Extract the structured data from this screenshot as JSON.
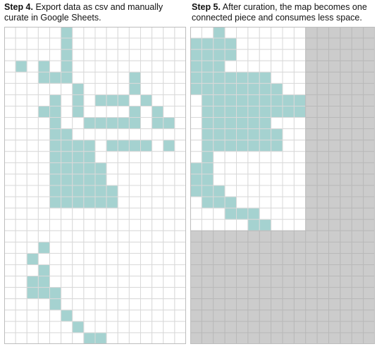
{
  "panel_left": {
    "step": "Step 4.",
    "caption": "Export data as csv and manually curate in Google Sheets.",
    "grid": {
      "cols": 16,
      "rows": 28,
      "filled": [
        [
          5,
          0
        ],
        [
          5,
          1
        ],
        [
          5,
          2
        ],
        [
          1,
          3
        ],
        [
          3,
          3
        ],
        [
          5,
          3
        ],
        [
          3,
          4
        ],
        [
          4,
          4
        ],
        [
          5,
          4
        ],
        [
          11,
          4
        ],
        [
          6,
          5
        ],
        [
          11,
          5
        ],
        [
          4,
          6
        ],
        [
          6,
          6
        ],
        [
          8,
          6
        ],
        [
          9,
          6
        ],
        [
          10,
          6
        ],
        [
          12,
          6
        ],
        [
          3,
          7
        ],
        [
          4,
          7
        ],
        [
          6,
          7
        ],
        [
          11,
          7
        ],
        [
          13,
          7
        ],
        [
          4,
          8
        ],
        [
          7,
          8
        ],
        [
          8,
          8
        ],
        [
          9,
          8
        ],
        [
          10,
          8
        ],
        [
          11,
          8
        ],
        [
          13,
          8
        ],
        [
          14,
          8
        ],
        [
          4,
          9
        ],
        [
          5,
          9
        ],
        [
          4,
          10
        ],
        [
          5,
          10
        ],
        [
          6,
          10
        ],
        [
          7,
          10
        ],
        [
          9,
          10
        ],
        [
          10,
          10
        ],
        [
          11,
          10
        ],
        [
          12,
          10
        ],
        [
          14,
          10
        ],
        [
          4,
          11
        ],
        [
          5,
          11
        ],
        [
          6,
          11
        ],
        [
          7,
          11
        ],
        [
          4,
          12
        ],
        [
          5,
          12
        ],
        [
          6,
          12
        ],
        [
          7,
          12
        ],
        [
          8,
          12
        ],
        [
          4,
          13
        ],
        [
          5,
          13
        ],
        [
          6,
          13
        ],
        [
          7,
          13
        ],
        [
          8,
          13
        ],
        [
          4,
          14
        ],
        [
          5,
          14
        ],
        [
          6,
          14
        ],
        [
          7,
          14
        ],
        [
          8,
          14
        ],
        [
          9,
          14
        ],
        [
          4,
          15
        ],
        [
          5,
          15
        ],
        [
          6,
          15
        ],
        [
          7,
          15
        ],
        [
          8,
          15
        ],
        [
          9,
          15
        ],
        [
          3,
          19
        ],
        [
          2,
          20
        ],
        [
          3,
          21
        ],
        [
          2,
          22
        ],
        [
          3,
          22
        ],
        [
          2,
          23
        ],
        [
          3,
          23
        ],
        [
          4,
          23
        ],
        [
          4,
          24
        ],
        [
          5,
          25
        ],
        [
          6,
          26
        ],
        [
          7,
          27
        ],
        [
          8,
          27
        ]
      ],
      "fill_color": "#a5d2d0",
      "empty_color": "#ffffff",
      "line_color": "#d9d9d9",
      "border_color": "#bdbdbd"
    }
  },
  "panel_right": {
    "step": "Step 5.",
    "caption": "After curation, the map becomes one connected piece and consumes less space.",
    "grid": {
      "cols": 16,
      "rows": 28,
      "active_cols": 10,
      "active_rows": 18,
      "filled": [
        [
          2,
          0
        ],
        [
          0,
          1
        ],
        [
          1,
          1
        ],
        [
          2,
          1
        ],
        [
          3,
          1
        ],
        [
          0,
          2
        ],
        [
          1,
          2
        ],
        [
          2,
          2
        ],
        [
          3,
          2
        ],
        [
          0,
          3
        ],
        [
          1,
          3
        ],
        [
          2,
          3
        ],
        [
          0,
          4
        ],
        [
          1,
          4
        ],
        [
          2,
          4
        ],
        [
          3,
          4
        ],
        [
          4,
          4
        ],
        [
          5,
          4
        ],
        [
          6,
          4
        ],
        [
          0,
          5
        ],
        [
          1,
          5
        ],
        [
          2,
          5
        ],
        [
          3,
          5
        ],
        [
          4,
          5
        ],
        [
          5,
          5
        ],
        [
          6,
          5
        ],
        [
          7,
          5
        ],
        [
          1,
          6
        ],
        [
          2,
          6
        ],
        [
          3,
          6
        ],
        [
          4,
          6
        ],
        [
          5,
          6
        ],
        [
          6,
          6
        ],
        [
          7,
          6
        ],
        [
          8,
          6
        ],
        [
          9,
          6
        ],
        [
          1,
          7
        ],
        [
          2,
          7
        ],
        [
          3,
          7
        ],
        [
          4,
          7
        ],
        [
          5,
          7
        ],
        [
          6,
          7
        ],
        [
          7,
          7
        ],
        [
          8,
          7
        ],
        [
          9,
          7
        ],
        [
          1,
          8
        ],
        [
          2,
          8
        ],
        [
          3,
          8
        ],
        [
          4,
          8
        ],
        [
          5,
          8
        ],
        [
          6,
          8
        ],
        [
          1,
          9
        ],
        [
          2,
          9
        ],
        [
          3,
          9
        ],
        [
          4,
          9
        ],
        [
          5,
          9
        ],
        [
          6,
          9
        ],
        [
          7,
          9
        ],
        [
          1,
          10
        ],
        [
          2,
          10
        ],
        [
          3,
          10
        ],
        [
          4,
          10
        ],
        [
          5,
          10
        ],
        [
          6,
          10
        ],
        [
          7,
          10
        ],
        [
          1,
          11
        ],
        [
          0,
          12
        ],
        [
          1,
          12
        ],
        [
          0,
          13
        ],
        [
          1,
          13
        ],
        [
          0,
          14
        ],
        [
          1,
          14
        ],
        [
          2,
          14
        ],
        [
          1,
          15
        ],
        [
          2,
          15
        ],
        [
          3,
          15
        ],
        [
          3,
          16
        ],
        [
          4,
          16
        ],
        [
          5,
          16
        ],
        [
          5,
          17
        ],
        [
          6,
          17
        ]
      ],
      "fill_color": "#a5d2d0",
      "empty_color": "#ffffff",
      "inactive_color": "#cccccc",
      "line_color": "#d9d9d9",
      "inactive_line_color": "#b9b9b9",
      "border_color": "#bdbdbd"
    }
  }
}
